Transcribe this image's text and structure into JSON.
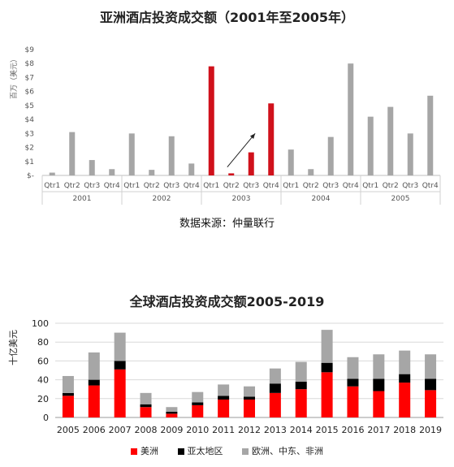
{
  "chart_data": [
    {
      "type": "bar",
      "title": "亚洲酒店投资成交额（2001年至2005年）",
      "ylabel": "百万（美元）",
      "ylim": [
        0,
        9
      ],
      "yticks": [
        "$-",
        "$1",
        "$2",
        "$3",
        "$4",
        "$5",
        "$6",
        "$7",
        "$8",
        "$9"
      ],
      "quarters": [
        "Qtr1",
        "Qtr2",
        "Qtr3",
        "Qtr4"
      ],
      "years": [
        "2001",
        "2002",
        "2003",
        "2004",
        "2005"
      ],
      "values": [
        0.2,
        3.1,
        1.1,
        0.45,
        3.0,
        0.4,
        2.8,
        0.85,
        7.8,
        0.15,
        1.65,
        5.15,
        1.85,
        0.45,
        2.75,
        8.0,
        4.2,
        4.9,
        3.0,
        5.7
      ],
      "highlight_year": "2003",
      "colors": {
        "base": "#a6a6a6",
        "highlight": "#d0111b"
      },
      "source": "数据来源：仲量联行"
    },
    {
      "type": "bar",
      "stacked": true,
      "title": "全球酒店投资成交额2005-2019",
      "ylabel": "十亿美元",
      "ylim": [
        0,
        100
      ],
      "yticks": [
        0,
        20,
        40,
        60,
        80,
        100
      ],
      "categories": [
        "2005",
        "2006",
        "2007",
        "2008",
        "2009",
        "2010",
        "2011",
        "2012",
        "2013",
        "2014",
        "2015",
        "2016",
        "2017",
        "2018",
        "2019"
      ],
      "series": [
        {
          "name": "美洲",
          "color": "#ff0000",
          "values": [
            23,
            34,
            51,
            11,
            4,
            13,
            19,
            19,
            26,
            30,
            48,
            33,
            28,
            37,
            29
          ]
        },
        {
          "name": "亚太地区",
          "color": "#000000",
          "values": [
            3,
            6,
            9,
            3,
            2,
            3,
            4,
            3,
            10,
            8,
            10,
            8,
            13,
            9,
            12
          ]
        },
        {
          "name": "欧洲、中东、非洲",
          "color": "#a6a6a6",
          "values": [
            18,
            29,
            30,
            12,
            5,
            11,
            12,
            11,
            16,
            21,
            35,
            23,
            26,
            25,
            26
          ]
        }
      ],
      "legend_position": "bottom"
    }
  ]
}
